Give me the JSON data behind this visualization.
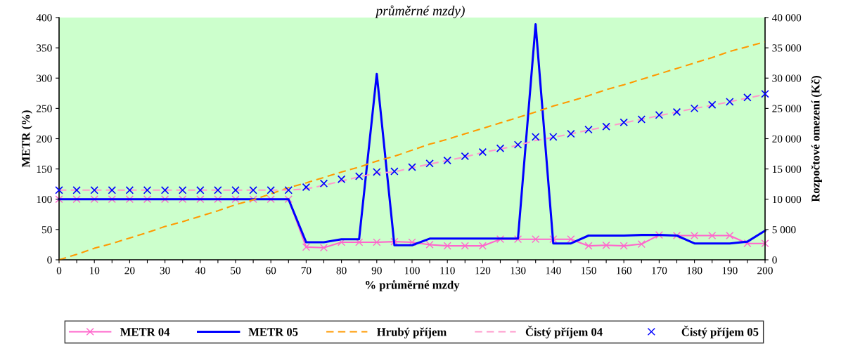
{
  "chart_data": {
    "type": "line",
    "title": "průměrné mzdy)",
    "xlabel": "% průměrné mzdy",
    "ylabel": "METR (%)",
    "y2label": "Rozpočtové omezení (Kč)",
    "x": [
      0,
      5,
      10,
      15,
      20,
      25,
      30,
      35,
      40,
      45,
      50,
      55,
      60,
      65,
      70,
      75,
      80,
      85,
      90,
      95,
      100,
      105,
      110,
      115,
      120,
      125,
      130,
      135,
      140,
      145,
      150,
      155,
      160,
      165,
      170,
      175,
      180,
      185,
      190,
      195,
      200
    ],
    "xlim": [
      0,
      200
    ],
    "xticks": [
      0,
      {
        "value": 5,
        "label": null
      },
      10,
      {
        "value": 15,
        "label": null
      },
      20,
      {
        "value": 25,
        "label": null
      },
      30,
      {
        "value": 35,
        "label": null
      },
      40,
      {
        "value": 45,
        "label": null
      },
      50,
      {
        "value": 55,
        "label": null
      },
      60,
      {
        "value": 65,
        "label": null
      },
      70,
      {
        "value": 75,
        "label": null
      },
      80,
      {
        "value": 85,
        "label": null
      },
      90,
      {
        "value": 95,
        "label": null
      },
      100,
      {
        "value": 105,
        "label": null
      },
      110,
      {
        "value": 115,
        "label": null
      },
      120,
      {
        "value": 125,
        "label": null
      },
      130,
      {
        "value": 135,
        "label": null
      },
      140,
      {
        "value": 145,
        "label": null
      },
      150,
      {
        "value": 155,
        "label": null
      },
      160,
      {
        "value": 165,
        "label": null
      },
      170,
      {
        "value": 175,
        "label": null
      },
      180,
      {
        "value": 185,
        "label": null
      },
      190,
      {
        "value": 195,
        "label": null
      },
      200
    ],
    "ylim": [
      0,
      400
    ],
    "yticks": [
      0,
      50,
      100,
      150,
      200,
      250,
      300,
      350,
      400
    ],
    "y2lim": [
      0,
      40000
    ],
    "y2ticks": [
      0,
      {
        "value": 5000,
        "label": "5 000"
      },
      {
        "value": 10000,
        "label": "10 000"
      },
      {
        "value": 15000,
        "label": "15 000"
      },
      {
        "value": 20000,
        "label": "20 000"
      },
      {
        "value": 25000,
        "label": "25 000"
      },
      {
        "value": 30000,
        "label": "30 000"
      },
      {
        "value": 35000,
        "label": "35 000"
      },
      {
        "value": 40000,
        "label": "40 000"
      }
    ],
    "grid": false,
    "legend": "bottom",
    "series": [
      {
        "name": "METR 04",
        "color": "#ff66cc",
        "marker": "cross",
        "line_style": "solid",
        "values": [
          100,
          100,
          100,
          100,
          100,
          100,
          100,
          100,
          100,
          100,
          100,
          100,
          100,
          100,
          21,
          20,
          29,
          29,
          29,
          30,
          29,
          25,
          23,
          23,
          23,
          34,
          34,
          34,
          34,
          34,
          23,
          24,
          23,
          26,
          41,
          40,
          40,
          40,
          40,
          27,
          27
        ]
      },
      {
        "name": "METR 05",
        "color": "#0000ff",
        "marker": "none",
        "line_style": "solid",
        "values": [
          100,
          100,
          100,
          100,
          100,
          100,
          100,
          100,
          100,
          100,
          100,
          100,
          100,
          100,
          29,
          29,
          34,
          34,
          307,
          24,
          24,
          35,
          35,
          35,
          35,
          35,
          35,
          389,
          27,
          27,
          40,
          40,
          40,
          41,
          41,
          40,
          27,
          27,
          27,
          30,
          48
        ]
      },
      {
        "name": "Hrubý příjem",
        "axis": "y2",
        "color": "#ff9900",
        "marker": "none",
        "line_style": "dashed",
        "values": [
          0,
          900,
          1900,
          2700,
          3600,
          4500,
          5500,
          6300,
          7200,
          8100,
          9100,
          9900,
          10900,
          11900,
          12700,
          13600,
          14500,
          15300,
          16300,
          17100,
          18100,
          19100,
          19900,
          20800,
          21700,
          22600,
          23500,
          24400,
          25400,
          26200,
          27100,
          28100,
          28900,
          29800,
          30700,
          31600,
          32500,
          33400,
          34400,
          35200,
          36000
        ]
      },
      {
        "name": "Čistý příjem 04",
        "axis": "y2",
        "color": "#ff99cc",
        "marker": "none",
        "line_style": "dashed",
        "values": [
          11500,
          11500,
          11500,
          11500,
          11500,
          11500,
          11500,
          11500,
          11500,
          11500,
          11500,
          11500,
          11500,
          11500,
          11700,
          12300,
          13000,
          13700,
          14300,
          14500,
          15200,
          15800,
          16400,
          17000,
          17700,
          18300,
          18900,
          19700,
          20200,
          20800,
          21400,
          22000,
          22600,
          23200,
          23800,
          24400,
          25000,
          25500,
          26100,
          26700,
          27300
        ]
      },
      {
        "name": "Čistý příjem 05",
        "type": "scatter",
        "axis": "y2",
        "color": "#0000ff",
        "marker": "cross",
        "values": [
          11500,
          11500,
          11500,
          11500,
          11500,
          11500,
          11500,
          11500,
          11500,
          11500,
          11500,
          11500,
          11500,
          11500,
          12000,
          12600,
          13300,
          13800,
          14500,
          14600,
          15300,
          15900,
          16400,
          17100,
          17800,
          18400,
          19000,
          20300,
          20300,
          20800,
          21500,
          22000,
          22700,
          23200,
          23900,
          24400,
          25000,
          25600,
          26100,
          26800,
          27400
        ]
      }
    ]
  }
}
